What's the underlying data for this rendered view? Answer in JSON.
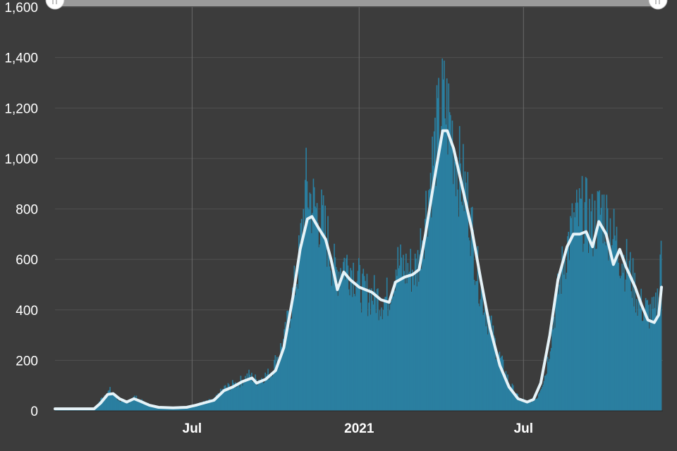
{
  "chart_data": {
    "type": "bar",
    "x_scale": "time",
    "x_range": [
      "2020-02-01",
      "2021-11-30"
    ],
    "y_range": [
      0,
      1600
    ],
    "y_ticks": [
      "0",
      "200",
      "400",
      "600",
      "800",
      "1,000",
      "1,200",
      "1,400",
      "1,600"
    ],
    "y_tick_values": [
      0,
      200,
      400,
      600,
      800,
      1000,
      1200,
      1400,
      1600
    ],
    "x_ticks": [
      {
        "label": "Jul",
        "date": "2020-07-01"
      },
      {
        "label": "2021",
        "date": "2021-01-01"
      },
      {
        "label": "Jul",
        "date": "2021-07-01"
      }
    ],
    "grid": {
      "horizontal": true,
      "vertical": true
    },
    "series": [
      {
        "kind": "bars",
        "color": "#2a7fa0",
        "anchors": [
          [
            "2020-02-01",
            8
          ],
          [
            "2020-03-15",
            10
          ],
          [
            "2020-03-25",
            60
          ],
          [
            "2020-04-01",
            80
          ],
          [
            "2020-04-10",
            45
          ],
          [
            "2020-04-20",
            30
          ],
          [
            "2020-04-28",
            55
          ],
          [
            "2020-05-10",
            30
          ],
          [
            "2020-05-25",
            15
          ],
          [
            "2020-06-15",
            15
          ],
          [
            "2020-07-01",
            18
          ],
          [
            "2020-07-10",
            30
          ],
          [
            "2020-07-25",
            45
          ],
          [
            "2020-08-05",
            90
          ],
          [
            "2020-08-20",
            110
          ],
          [
            "2020-09-01",
            140
          ],
          [
            "2020-09-10",
            120
          ],
          [
            "2020-09-25",
            150
          ],
          [
            "2020-10-10",
            280
          ],
          [
            "2020-10-25",
            560
          ],
          [
            "2020-11-03",
            880
          ],
          [
            "2020-11-10",
            820
          ],
          [
            "2020-11-18",
            770
          ],
          [
            "2020-11-25",
            700
          ],
          [
            "2020-12-05",
            540
          ],
          [
            "2020-12-15",
            590
          ],
          [
            "2020-12-25",
            560
          ],
          [
            "2021-01-05",
            470
          ],
          [
            "2021-01-15",
            460
          ],
          [
            "2021-01-25",
            440
          ],
          [
            "2021-02-01",
            450
          ],
          [
            "2021-02-10",
            580
          ],
          [
            "2021-02-20",
            560
          ],
          [
            "2021-03-05",
            560
          ],
          [
            "2021-03-15",
            800
          ],
          [
            "2021-03-25",
            1050
          ],
          [
            "2021-04-03",
            1220
          ],
          [
            "2021-04-10",
            1150
          ],
          [
            "2021-04-20",
            960
          ],
          [
            "2021-05-01",
            820
          ],
          [
            "2021-05-10",
            560
          ],
          [
            "2021-05-20",
            400
          ],
          [
            "2021-06-01",
            240
          ],
          [
            "2021-06-15",
            110
          ],
          [
            "2021-06-25",
            50
          ],
          [
            "2021-07-05",
            35
          ],
          [
            "2021-07-15",
            50
          ],
          [
            "2021-07-25",
            150
          ],
          [
            "2021-08-05",
            420
          ],
          [
            "2021-08-15",
            620
          ],
          [
            "2021-08-25",
            740
          ],
          [
            "2021-09-05",
            790
          ],
          [
            "2021-09-15",
            730
          ],
          [
            "2021-09-25",
            800
          ],
          [
            "2021-10-05",
            720
          ],
          [
            "2021-10-15",
            620
          ],
          [
            "2021-10-25",
            560
          ],
          [
            "2021-11-05",
            420
          ],
          [
            "2021-11-15",
            390
          ],
          [
            "2021-11-22",
            380
          ],
          [
            "2021-11-27",
            480
          ],
          [
            "2021-11-29",
            720
          ]
        ]
      },
      {
        "kind": "line",
        "color": "#e6f3f8",
        "points": [
          [
            "2020-02-01",
            8
          ],
          [
            "2020-03-15",
            8
          ],
          [
            "2020-03-22",
            30
          ],
          [
            "2020-03-30",
            65
          ],
          [
            "2020-04-05",
            68
          ],
          [
            "2020-04-12",
            48
          ],
          [
            "2020-04-20",
            35
          ],
          [
            "2020-04-28",
            48
          ],
          [
            "2020-05-05",
            38
          ],
          [
            "2020-05-15",
            22
          ],
          [
            "2020-05-25",
            14
          ],
          [
            "2020-06-10",
            12
          ],
          [
            "2020-06-25",
            14
          ],
          [
            "2020-07-05",
            22
          ],
          [
            "2020-07-15",
            32
          ],
          [
            "2020-07-25",
            42
          ],
          [
            "2020-08-05",
            80
          ],
          [
            "2020-08-15",
            95
          ],
          [
            "2020-08-25",
            115
          ],
          [
            "2020-09-05",
            130
          ],
          [
            "2020-09-10",
            110
          ],
          [
            "2020-09-20",
            125
          ],
          [
            "2020-10-01",
            160
          ],
          [
            "2020-10-10",
            250
          ],
          [
            "2020-10-20",
            450
          ],
          [
            "2020-10-28",
            640
          ],
          [
            "2020-11-05",
            760
          ],
          [
            "2020-11-10",
            770
          ],
          [
            "2020-11-18",
            720
          ],
          [
            "2020-11-25",
            680
          ],
          [
            "2020-12-01",
            600
          ],
          [
            "2020-12-08",
            480
          ],
          [
            "2020-12-15",
            550
          ],
          [
            "2020-12-22",
            520
          ],
          [
            "2021-01-01",
            490
          ],
          [
            "2021-01-15",
            470
          ],
          [
            "2021-01-25",
            440
          ],
          [
            "2021-02-03",
            430
          ],
          [
            "2021-02-10",
            510
          ],
          [
            "2021-02-20",
            530
          ],
          [
            "2021-03-01",
            540
          ],
          [
            "2021-03-08",
            560
          ],
          [
            "2021-03-15",
            700
          ],
          [
            "2021-03-25",
            920
          ],
          [
            "2021-04-03",
            1110
          ],
          [
            "2021-04-08",
            1110
          ],
          [
            "2021-04-15",
            1040
          ],
          [
            "2021-04-25",
            880
          ],
          [
            "2021-05-05",
            720
          ],
          [
            "2021-05-15",
            520
          ],
          [
            "2021-05-25",
            330
          ],
          [
            "2021-06-05",
            180
          ],
          [
            "2021-06-15",
            95
          ],
          [
            "2021-06-25",
            48
          ],
          [
            "2021-07-05",
            35
          ],
          [
            "2021-07-12",
            45
          ],
          [
            "2021-07-20",
            110
          ],
          [
            "2021-07-30",
            300
          ],
          [
            "2021-08-08",
            520
          ],
          [
            "2021-08-18",
            650
          ],
          [
            "2021-08-25",
            700
          ],
          [
            "2021-09-01",
            700
          ],
          [
            "2021-09-08",
            710
          ],
          [
            "2021-09-15",
            650
          ],
          [
            "2021-09-22",
            750
          ],
          [
            "2021-09-30",
            700
          ],
          [
            "2021-10-08",
            580
          ],
          [
            "2021-10-15",
            640
          ],
          [
            "2021-10-22",
            570
          ],
          [
            "2021-11-01",
            490
          ],
          [
            "2021-11-08",
            420
          ],
          [
            "2021-11-15",
            360
          ],
          [
            "2021-11-22",
            350
          ],
          [
            "2021-11-27",
            380
          ],
          [
            "2021-11-30",
            490
          ]
        ]
      }
    ]
  },
  "colors": {
    "background": "#3c3c3c",
    "bar": "#2a7fa0",
    "line": "#e6f3f8"
  },
  "scrollbar": {
    "left_handle_icon": "grip-icon",
    "right_handle_icon": "grip-icon"
  }
}
